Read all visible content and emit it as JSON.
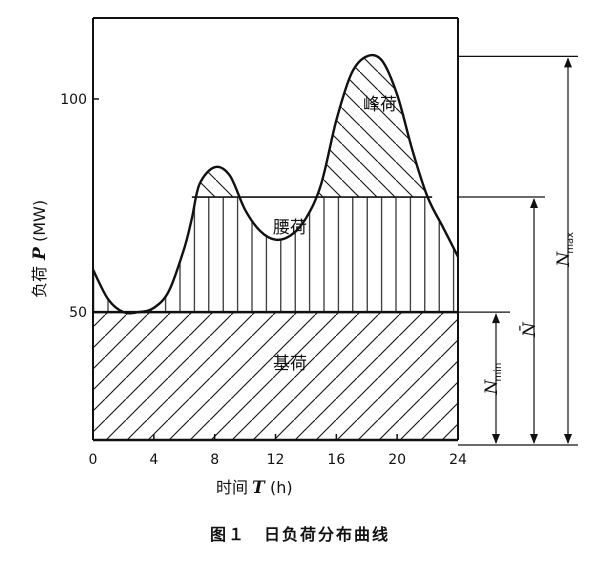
{
  "chart_data": {
    "type": "area",
    "title": "图１　日负荷分布曲线",
    "xlabel": "时间",
    "xlabel_symbol": "T",
    "xlabel_unit": "(h)",
    "ylabel": "负荷",
    "ylabel_symbol": "P",
    "ylabel_unit": "(MW)",
    "xlim": [
      0,
      24
    ],
    "ylim": [
      20,
      119
    ],
    "x_ticks": [
      "0",
      "4",
      "8",
      "12",
      "16",
      "20",
      "24"
    ],
    "y_ticks": [
      {
        "value": 50,
        "label": "50"
      },
      {
        "value": 100,
        "label": "100"
      }
    ],
    "grid": false,
    "series": [
      {
        "x": [
          0,
          1,
          2,
          3,
          4,
          5,
          6,
          6.5,
          7,
          8,
          9,
          10,
          11,
          12,
          13,
          14,
          15,
          16,
          17,
          18,
          19,
          20,
          21,
          22,
          23,
          24
        ],
        "y": [
          60,
          53,
          50,
          50,
          51,
          55,
          65,
          72,
          80,
          84,
          82,
          74,
          69,
          67,
          68,
          72,
          80,
          95,
          106,
          110,
          109,
          101,
          88,
          77,
          70,
          63
        ]
      }
    ],
    "regions": [
      {
        "label": "基荷",
        "from": 20,
        "to": 50
      },
      {
        "label": "腰荷",
        "from": 50,
        "to": 77
      },
      {
        "label": "峰荷",
        "from": 77,
        "to": 110
      }
    ],
    "levels": [
      {
        "label": "N",
        "subscript": "min",
        "value": 50
      },
      {
        "label": "N̄",
        "subscript": "",
        "value": 77
      },
      {
        "label": "N",
        "subscript": "max",
        "value": 110
      }
    ]
  }
}
